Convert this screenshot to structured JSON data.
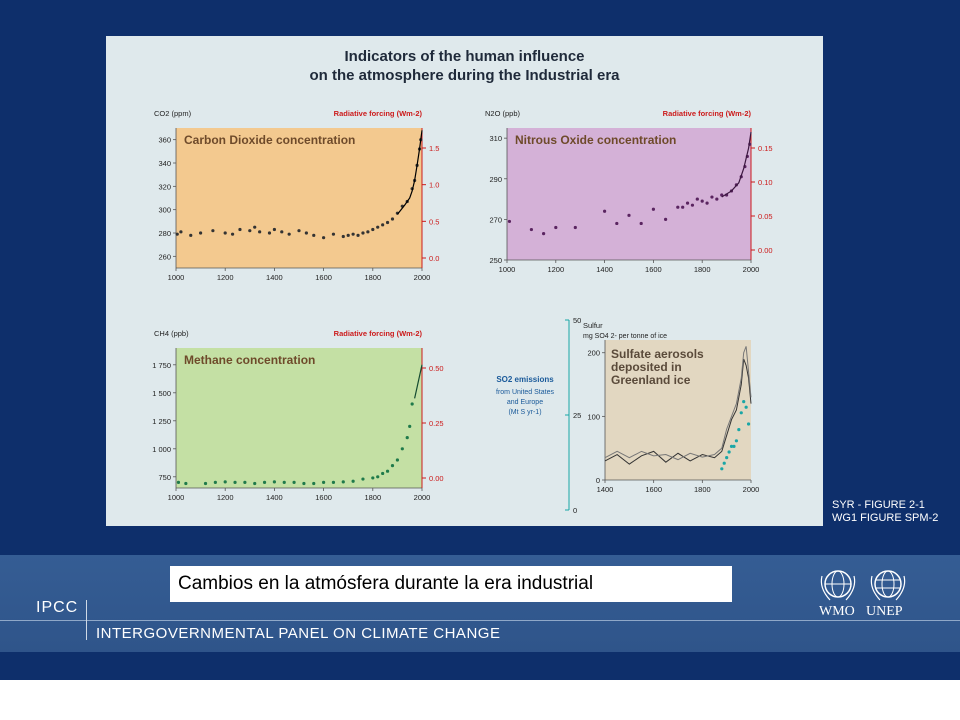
{
  "slide": {
    "figure_ref_line1": "SYR - FIGURE 2-1",
    "figure_ref_line2": "WG1 FIGURE SPM-2",
    "caption": "Cambios en la atmósfera durante la era industrial",
    "ipcc_short": "IPCC",
    "ipcc_full": "INTERGOVERNMENTAL PANEL ON CLIMATE CHANGE",
    "logo_wmo": "WMO",
    "logo_unep": "UNEP",
    "logo_wmo_icon": "wmo-emblem-icon",
    "logo_unep_icon": "unep-emblem-icon",
    "colors": {
      "slide_bg": "#0e2f6b",
      "forcing": "#cc1b1b"
    }
  },
  "figure": {
    "title_line1": "Indicators of the human influence",
    "title_line2": "on the atmosphere during the Industrial era"
  },
  "chart_data": [
    {
      "type": "scatter",
      "title": "Carbon Dioxide concentration",
      "ylabel": "CO2 (ppm)",
      "ylabel_right": "Radiative forcing (Wm-2)",
      "xlim": [
        1000,
        2000
      ],
      "ylim": [
        250,
        370
      ],
      "xticks": [
        "1000",
        "1200",
        "1400",
        "1600",
        "1800",
        "2000"
      ],
      "yticks": [
        "260",
        "280",
        "300",
        "320",
        "340",
        "360"
      ],
      "yticks_right": [
        "0.0",
        "0.5",
        "1.0",
        "1.5"
      ],
      "background_color": "#f3c98f",
      "x": [
        1005,
        1020,
        1060,
        1100,
        1150,
        1200,
        1230,
        1260,
        1300,
        1320,
        1340,
        1380,
        1400,
        1430,
        1460,
        1500,
        1530,
        1560,
        1600,
        1640,
        1680,
        1700,
        1720,
        1740,
        1760,
        1780,
        1800,
        1820,
        1840,
        1860,
        1880,
        1900,
        1920,
        1940,
        1960,
        1970,
        1980,
        1990,
        1995
      ],
      "y": [
        279,
        281,
        278,
        280,
        282,
        280,
        279,
        283,
        282,
        285,
        281,
        280,
        283,
        281,
        279,
        282,
        280,
        278,
        276,
        279,
        277,
        278,
        279,
        278,
        280,
        281,
        283,
        285,
        287,
        289,
        292,
        297,
        303,
        307,
        318,
        325,
        338,
        352,
        360
      ],
      "fit": {
        "x": [
          1900,
          1930,
          1950,
          1960,
          1970,
          1980,
          1990,
          2000
        ],
        "y": [
          296,
          304,
          310,
          316,
          325,
          338,
          352,
          368
        ]
      }
    },
    {
      "type": "scatter",
      "title": "Nitrous Oxide concentration",
      "ylabel": "N2O (ppb)",
      "ylabel_right": "Radiative forcing (Wm-2)",
      "xlim": [
        1000,
        2000
      ],
      "ylim": [
        250,
        315
      ],
      "xticks": [
        "1000",
        "1200",
        "1400",
        "1600",
        "1800",
        "2000"
      ],
      "yticks": [
        "250",
        "270",
        "290",
        "310"
      ],
      "yticks_right": [
        "0.00",
        "0.05",
        "0.10",
        "0.15"
      ],
      "background_color": "#d4b1d7",
      "x": [
        1010,
        1100,
        1150,
        1200,
        1280,
        1400,
        1450,
        1500,
        1550,
        1600,
        1650,
        1700,
        1720,
        1740,
        1760,
        1780,
        1800,
        1820,
        1840,
        1860,
        1880,
        1900,
        1920,
        1940,
        1960,
        1975,
        1985,
        1995
      ],
      "y": [
        269,
        265,
        263,
        266,
        266,
        274,
        268,
        272,
        268,
        275,
        270,
        276,
        276,
        278,
        277,
        280,
        279,
        278,
        281,
        280,
        282,
        282,
        284,
        287,
        291,
        296,
        301,
        307
      ],
      "fit": {
        "x": [
          1880,
          1920,
          1950,
          1970,
          1990,
          2000
        ],
        "y": [
          281,
          284,
          288,
          295,
          305,
          313
        ]
      }
    },
    {
      "type": "scatter",
      "title": "Methane concentration",
      "ylabel": "CH4 (ppb)",
      "ylabel_right": "Radiative forcing (Wm-2)",
      "xlim": [
        1000,
        2000
      ],
      "ylim": [
        650,
        1900
      ],
      "xticks": [
        "1000",
        "1200",
        "1400",
        "1600",
        "1800",
        "2000"
      ],
      "yticks": [
        "750",
        "1 000",
        "1 250",
        "1 500",
        "1 750"
      ],
      "yticks_right": [
        "0.00",
        "0.25",
        "0.50"
      ],
      "background_color": "#c4e0a4",
      "x": [
        1010,
        1040,
        1120,
        1160,
        1200,
        1240,
        1280,
        1320,
        1360,
        1400,
        1440,
        1480,
        1520,
        1560,
        1600,
        1640,
        1680,
        1720,
        1760,
        1800,
        1820,
        1840,
        1860,
        1880,
        1900,
        1920,
        1940,
        1950,
        1960
      ],
      "y": [
        700,
        690,
        690,
        700,
        705,
        700,
        700,
        690,
        700,
        705,
        700,
        700,
        690,
        690,
        700,
        700,
        705,
        710,
        730,
        740,
        750,
        780,
        800,
        850,
        900,
        1000,
        1100,
        1200,
        1400
      ],
      "fit": {
        "x": [
          1970,
          1980,
          1990,
          2000
        ],
        "y": [
          1450,
          1550,
          1650,
          1750
        ]
      }
    },
    {
      "type": "line",
      "title": "Sulfate aerosols deposited in Greenland ice",
      "ylabel": "Sulfur",
      "ylabel_unit": "mg SO4 2- per tonne of ice",
      "xlim": [
        1400,
        2000
      ],
      "ylim": [
        0,
        220
      ],
      "xticks": [
        "1400",
        "1600",
        "1800",
        "2000"
      ],
      "yticks": [
        "0",
        "100",
        "200"
      ],
      "background_color": "#e2d7c1",
      "series": [
        {
          "x": [
            1400,
            1450,
            1500,
            1550,
            1600,
            1650,
            1700,
            1750,
            1800,
            1850,
            1880,
            1900,
            1920,
            1940,
            1960,
            1970,
            1980,
            1990,
            2000
          ],
          "y": [
            30,
            40,
            25,
            38,
            45,
            28,
            42,
            30,
            40,
            35,
            45,
            70,
            95,
            110,
            150,
            190,
            180,
            160,
            120
          ]
        },
        {
          "x": [
            1400,
            1450,
            1500,
            1550,
            1600,
            1650,
            1700,
            1750,
            1800,
            1850,
            1880,
            1900,
            1920,
            1940,
            1960,
            1970,
            1980,
            1990,
            2000
          ],
          "y": [
            35,
            45,
            35,
            45,
            38,
            40,
            32,
            42,
            36,
            40,
            50,
            80,
            100,
            120,
            160,
            200,
            210,
            170,
            130
          ]
        }
      ],
      "so2_x": [
        1880,
        1890,
        1900,
        1910,
        1920,
        1930,
        1940,
        1950,
        1960,
        1970,
        1980,
        1990
      ],
      "so2_y": [
        4,
        6,
        8,
        10,
        12,
        12,
        14,
        18,
        24,
        28,
        26,
        20
      ],
      "so2_label": "SO2 emissions",
      "so2_label2": "from United States",
      "so2_label3": "and Europe",
      "so2_label4": "(Mt S yr-1)",
      "so2_axis_ticks": [
        "0",
        "25",
        "50"
      ]
    }
  ]
}
